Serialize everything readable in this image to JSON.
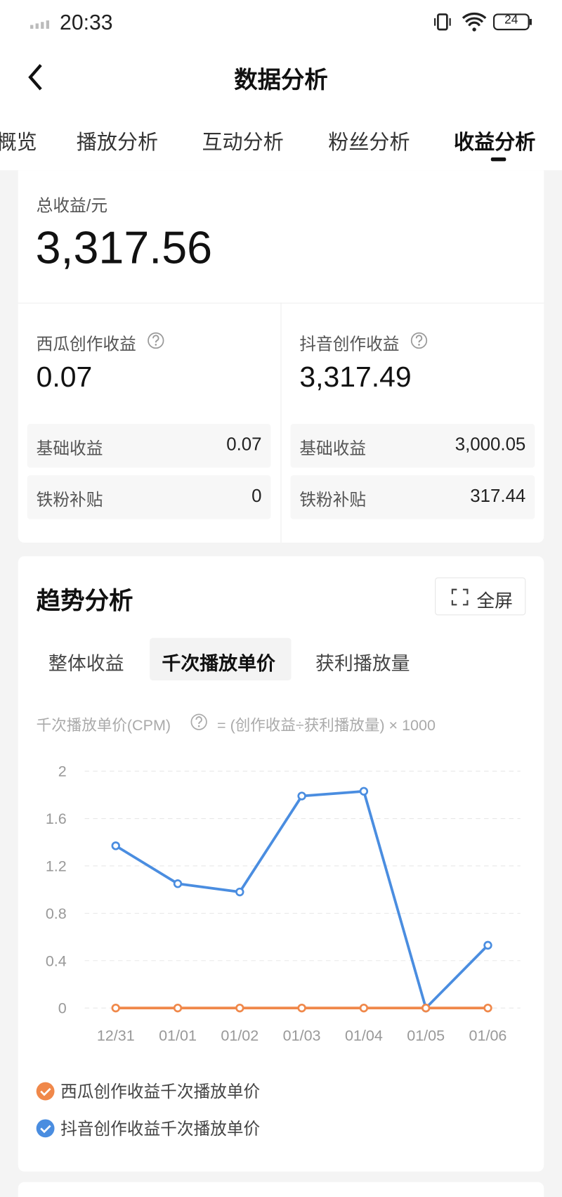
{
  "status_bar": {
    "time": "20:33",
    "battery": "24"
  },
  "header": {
    "title": "数据分析"
  },
  "tabs": [
    "概览",
    "播放分析",
    "互动分析",
    "粉丝分析",
    "收益分析"
  ],
  "summary": {
    "label": "总收益/元",
    "value": "3,317.56",
    "xigua": {
      "label": "西瓜创作收益",
      "value": "0.07",
      "rows": [
        [
          "基础收益",
          "0.07"
        ],
        [
          "铁粉补贴",
          "0"
        ]
      ]
    },
    "douyin": {
      "label": "抖音创作收益",
      "value": "3,317.49",
      "rows": [
        [
          "基础收益",
          "3,000.05"
        ],
        [
          "铁粉补贴",
          "317.44"
        ]
      ]
    }
  },
  "trend": {
    "title": "趋势分析",
    "fullscreen": "全屏",
    "tabs": [
      "整体收益",
      "千次播放单价",
      "获利播放量"
    ],
    "formula_name": "千次播放单价(CPM)",
    "formula": "= (创作收益÷获利播放量) × 1000"
  },
  "chart_data": {
    "type": "line",
    "categories": [
      "12/31",
      "01/01",
      "01/02",
      "01/03",
      "01/04",
      "01/05",
      "01/06"
    ],
    "series": [
      {
        "name": "西瓜创作收益千次播放单价",
        "color": "#f0884a",
        "values": [
          0,
          0,
          0,
          0,
          0,
          0,
          0
        ]
      },
      {
        "name": "抖音创作收益千次播放单价",
        "color": "#4a8de0",
        "values": [
          1.37,
          1.05,
          0.98,
          1.79,
          1.83,
          0,
          0.53
        ]
      }
    ],
    "ylim": [
      0,
      2
    ],
    "yticks": [
      0,
      0.4,
      0.8,
      1.2,
      1.6,
      2
    ],
    "grid": true
  }
}
